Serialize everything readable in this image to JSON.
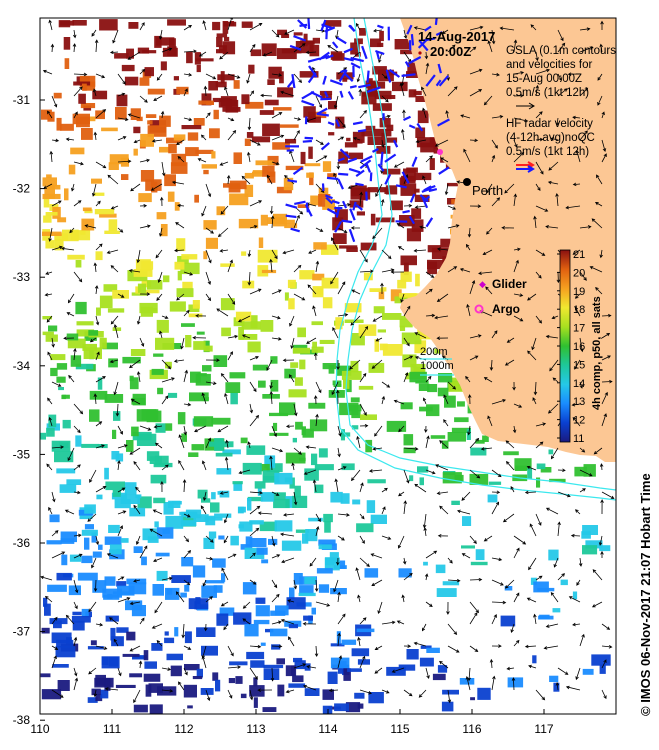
{
  "map": {
    "date": "14-Aug-2017",
    "time": "20:00Z",
    "city": "Perth",
    "gsla_legend": [
      "GSLA (0.1m contours)",
      "and velocities for",
      "15-Aug 00:00Z",
      "0.5m/s (1kt 12h)"
    ],
    "hf_legend": [
      "HF radar velocity",
      "(4-12h avg)noQC",
      "0.5m/s (1kt 12h)"
    ],
    "glider_label": "Glider",
    "argo_label": "Argo",
    "isobath_labels": [
      "200m",
      "1000m"
    ],
    "colorbar_label": "4h comp, p50, all sats",
    "colorbar_ticks": [
      "21",
      "20",
      "19",
      "18",
      "17",
      "16",
      "15",
      "14",
      "13",
      "12",
      "11"
    ],
    "side_credit": "© IMOS 06-Nov-2017 21:07 Hobart Time",
    "x_ticks": [
      "110",
      "111",
      "112",
      "113",
      "114",
      "115",
      "116",
      "117"
    ],
    "y_ticks": [
      "-31",
      "-32",
      "-33",
      "-34",
      "-35",
      "-36",
      "-37",
      "-38"
    ],
    "colors": {
      "land": "#fcc794",
      "isobath": "#3ce8ee",
      "hf_arrow": "#1a1aff",
      "hf_legend_red": "#ff2020",
      "glider": "#cc00cc",
      "argo": "#ff33cc"
    }
  }
}
